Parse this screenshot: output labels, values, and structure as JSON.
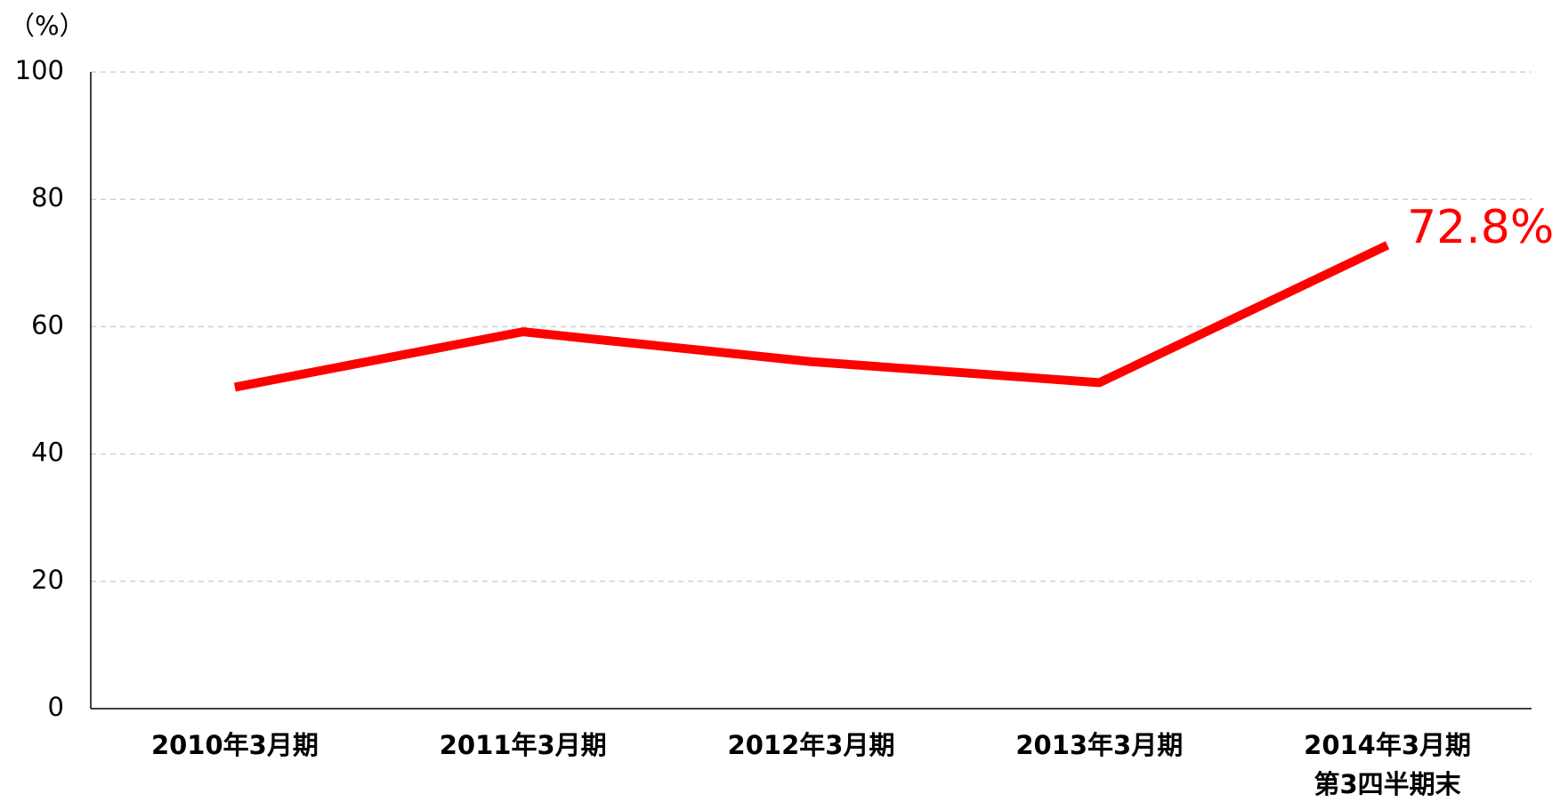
{
  "chart_data": {
    "type": "line",
    "y_label": "（%）",
    "categories": [
      "2010年3月期",
      "2011年3月期",
      "2012年3月期",
      "2013年3月期",
      "2014年3月期\n第3四半期末"
    ],
    "series": [
      {
        "name": null,
        "color": "#ff0000",
        "values": [
          50.5,
          59.2,
          54.5,
          51.2,
          72.8
        ],
        "value_labels": [
          null,
          null,
          null,
          null,
          "72.8%"
        ]
      }
    ],
    "ylim": [
      0,
      100
    ],
    "yticks": [
      0,
      20,
      40,
      60,
      80,
      100
    ],
    "grid": true
  }
}
